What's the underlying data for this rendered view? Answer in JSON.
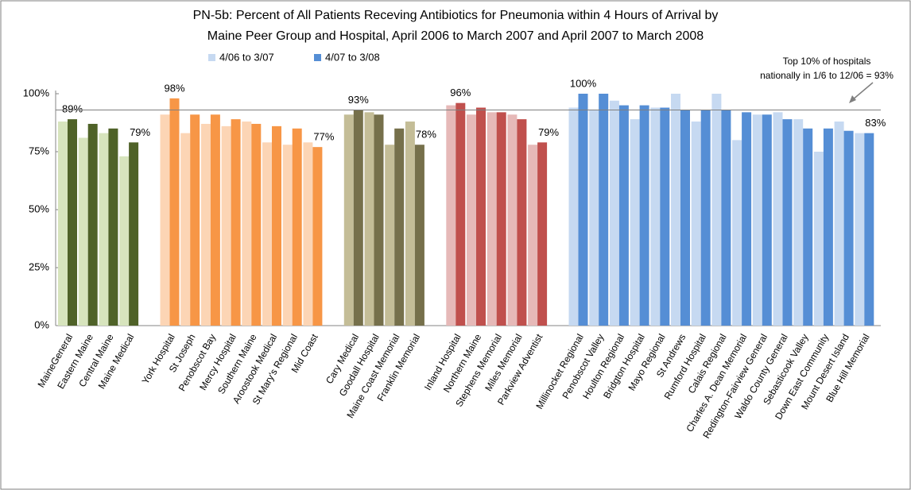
{
  "chart_data": {
    "type": "bar",
    "title": [
      "PN-5b:  Percent of All Patients Receving Antibiotics for Pneumonia within 4 Hours of Arrival by",
      "Maine Peer Group and Hospital, April 2006 to March 2007 and April 2007 to March 2008"
    ],
    "series": [
      {
        "name": "4/06 to 3/07",
        "color": "#c6d9f1"
      },
      {
        "name": "4/07 to 3/08",
        "color": "#558ed5"
      }
    ],
    "ylim": [
      0,
      100
    ],
    "yticks": [
      {
        "value": 0,
        "label": "0%"
      },
      {
        "value": 25,
        "label": "25%"
      },
      {
        "value": 50,
        "label": "50%"
      },
      {
        "value": 75,
        "label": "75%"
      },
      {
        "value": 100,
        "label": "100%"
      }
    ],
    "reference_line": {
      "value": 93,
      "label": [
        "Top 10% of hospitals",
        "nationally in 1/6 to 12/06 = 93%"
      ]
    },
    "groups": [
      {
        "colors": [
          "#d7e4bd",
          "#4f6228"
        ],
        "categories": [
          "MaineGeneral",
          "Eastern Maine",
          "Central Maine",
          "Maine Medical"
        ],
        "values": [
          [
            88,
            81,
            83,
            73
          ],
          [
            89,
            87,
            85,
            79
          ]
        ],
        "value_labels": [
          "89%",
          null,
          null,
          "79%"
        ]
      },
      {
        "colors": [
          "#fcd5b5",
          "#f79646"
        ],
        "categories": [
          "York Hospital",
          "St Joseph",
          "Penobscot Bay",
          "Mercy Hospital",
          "Southern Maine",
          "Aroostook Medical",
          "St Mary's Regional",
          "Mid Coast"
        ],
        "values": [
          [
            91,
            83,
            87,
            86,
            88,
            79,
            78,
            79
          ],
          [
            98,
            91,
            91,
            89,
            87,
            86,
            85,
            77
          ]
        ],
        "value_labels": [
          "98%",
          null,
          null,
          null,
          null,
          null,
          null,
          "77%"
        ]
      },
      {
        "colors": [
          "#c4bd97",
          "#76704b"
        ],
        "categories": [
          "Cary Medical",
          "Goodall Hospital",
          "Maine Coast Memorial",
          "Franklin Memorial"
        ],
        "values": [
          [
            91,
            92,
            78,
            88
          ],
          [
            93,
            91,
            85,
            78
          ]
        ],
        "value_labels": [
          "93%",
          null,
          null,
          "78%"
        ]
      },
      {
        "colors": [
          "#e6b9b8",
          "#c0504d"
        ],
        "categories": [
          "Inland Hospital",
          "Northern Maine",
          "Stephens Memorial",
          "Miles Memorial",
          "Parkview Adventist"
        ],
        "values": [
          [
            95,
            91,
            92,
            91,
            78
          ],
          [
            96,
            94,
            92,
            89,
            79
          ]
        ],
        "value_labels": [
          "96%",
          null,
          null,
          null,
          "79%"
        ]
      },
      {
        "colors": [
          "#c6d9f1",
          "#558ed5"
        ],
        "categories": [
          "Millinocket Regional",
          "Penobscot Valley",
          "Houlton Regional",
          "Bridgton Hospital",
          "Mayo Regional",
          "St Andrews",
          "Rumford Hospital",
          "Calais Regional",
          "Charles A. Dean Memorial",
          "Redington-Fairview General",
          "Waldo County General",
          "Sebasticook Valley",
          "Down East Community",
          "Mount Desert Island",
          "Blue Hill Memorial"
        ],
        "values": [
          [
            94,
            93,
            97,
            89,
            94,
            100,
            88,
            100,
            80,
            91,
            92,
            89,
            75,
            88,
            83
          ],
          [
            100,
            100,
            95,
            95,
            94,
            93,
            93,
            93,
            92,
            91,
            89,
            85,
            85,
            84,
            83
          ]
        ],
        "value_labels": [
          "100%",
          null,
          null,
          null,
          null,
          null,
          null,
          null,
          null,
          null,
          null,
          null,
          null,
          null,
          "83%"
        ]
      }
    ]
  }
}
